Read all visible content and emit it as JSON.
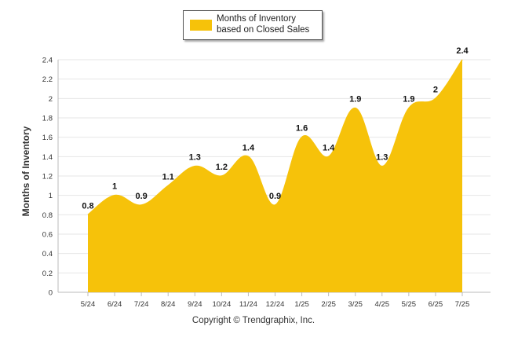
{
  "chart_data": {
    "type": "area",
    "categories": [
      "5/24",
      "6/24",
      "7/24",
      "8/24",
      "9/24",
      "10/24",
      "11/24",
      "12/24",
      "1/25",
      "2/25",
      "3/25",
      "4/25",
      "5/25",
      "6/25",
      "7/25"
    ],
    "series": [
      {
        "name": "Months of Inventory based on Closed Sales",
        "values": [
          0.8,
          1,
          0.9,
          1.1,
          1.3,
          1.2,
          1.4,
          0.9,
          1.6,
          1.4,
          1.9,
          1.3,
          1.9,
          2,
          2.4
        ],
        "color": "#f6c20a"
      }
    ],
    "data_labels": [
      "0.8",
      "1",
      "0.9",
      "1.1",
      "1.3",
      "1.2",
      "1.4",
      "0.9",
      "1.6",
      "1.4",
      "1.9",
      "1.3",
      "1.9",
      "2",
      "2.4"
    ],
    "ylabel": "Months of Inventory",
    "xlabel": "",
    "ylim": [
      0,
      2.4
    ],
    "yticks": [
      "0",
      "0.2",
      "0.4",
      "0.6",
      "0.8",
      "1",
      "1.2",
      "1.4",
      "1.6",
      "1.8",
      "2",
      "2.2",
      "2.4"
    ],
    "grid": true,
    "legend_position": "top-center"
  },
  "legend": {
    "label": "Months of Inventory based on Closed Sales",
    "color": "#f6c20a"
  },
  "footer": {
    "copyright": "Copyright © Trendgraphix, Inc."
  }
}
